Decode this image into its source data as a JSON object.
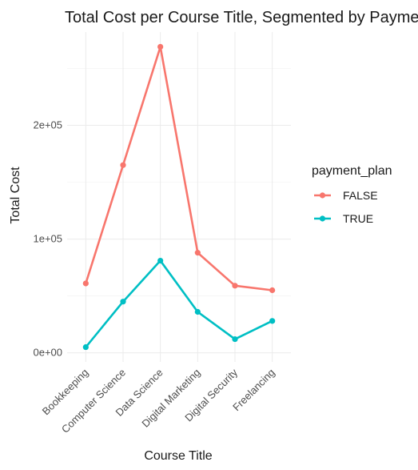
{
  "chart_data": {
    "type": "line",
    "title": "Total Cost per Course Title, Segmented by Payment Plan",
    "xlabel": "Course Title",
    "ylabel": "Total Cost",
    "categories": [
      "Bookkeeping",
      "Computer Science",
      "Data Science",
      "Digital Marketing",
      "Digital Security",
      "Freelancing"
    ],
    "series": [
      {
        "name": "FALSE",
        "color": "#F8766D",
        "values": [
          61000,
          165000,
          269000,
          88000,
          59000,
          55000
        ]
      },
      {
        "name": "TRUE",
        "color": "#00BFC4",
        "values": [
          5000,
          45000,
          81000,
          36000,
          12000,
          28000
        ]
      }
    ],
    "ylim": [
      -8000,
      282000
    ],
    "yticks": [
      {
        "value": 0,
        "label": "0e+00"
      },
      {
        "value": 100000,
        "label": "1e+05"
      },
      {
        "value": 200000,
        "label": "2e+05"
      }
    ],
    "yminor": [
      50000,
      150000,
      250000
    ],
    "grid": true,
    "legend": {
      "title": "payment_plan",
      "position": "right"
    }
  }
}
